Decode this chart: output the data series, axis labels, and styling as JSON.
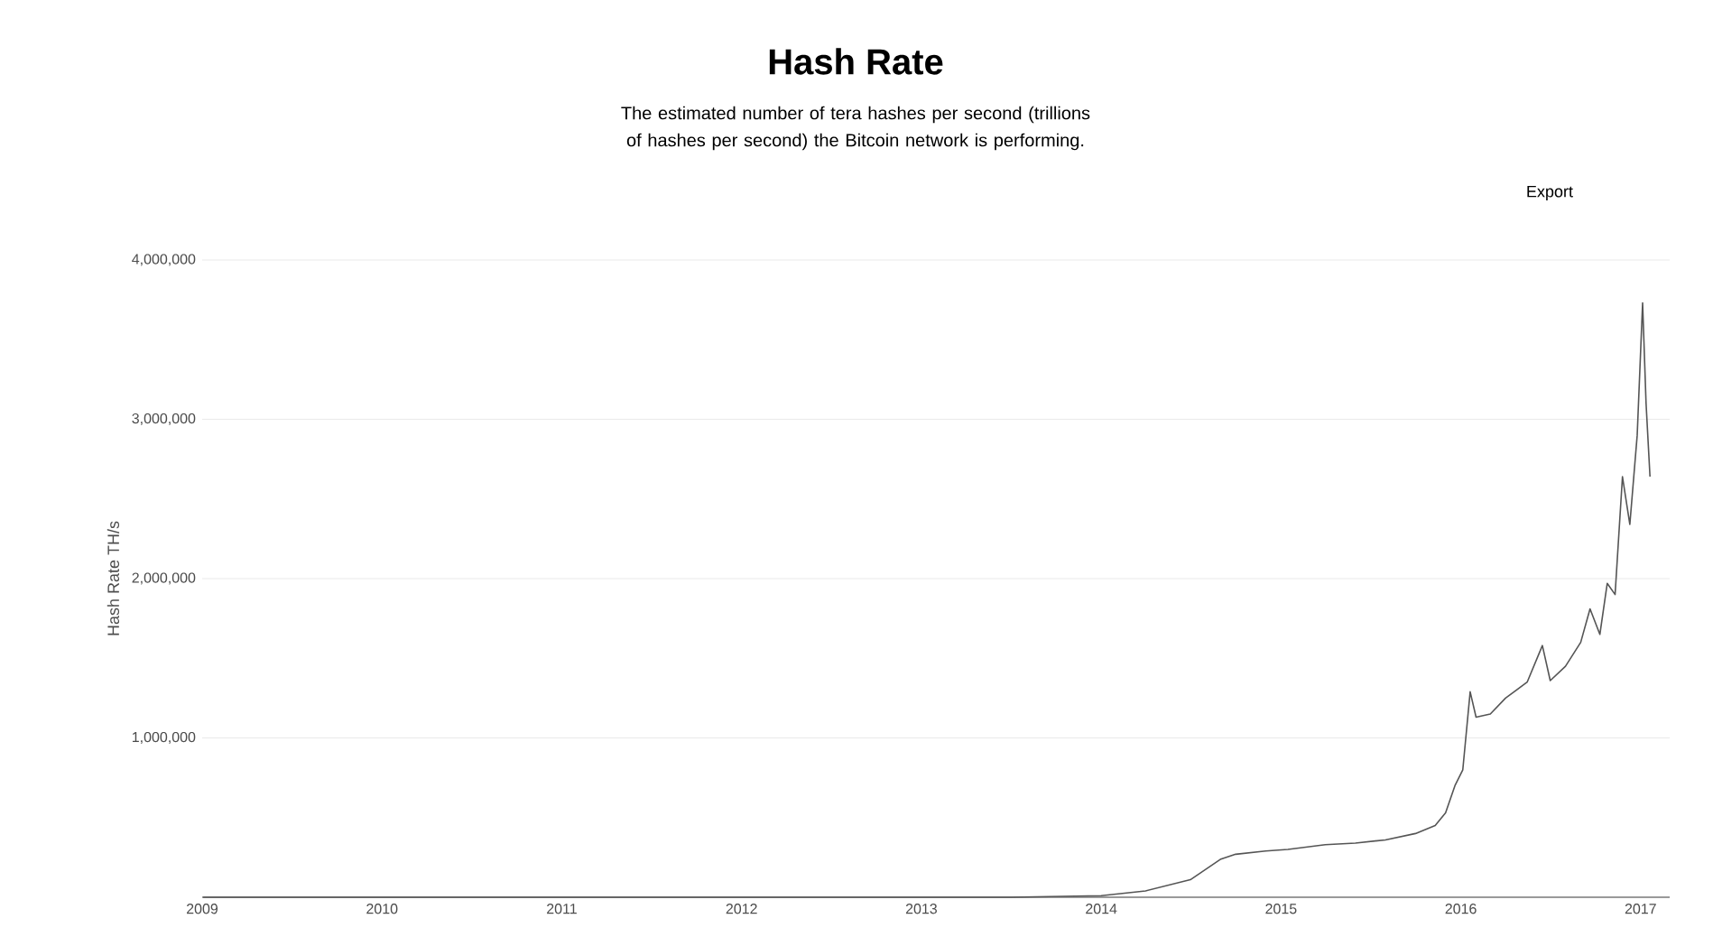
{
  "chart_data": {
    "type": "line",
    "title": "Hash Rate",
    "subtitle": "The estimated number of tera hashes per second (trillions of hashes per second) the Bitcoin network is performing.",
    "ylabel": "Hash Rate TH/s",
    "annotations": [
      "Export"
    ],
    "x": [
      "2009-01-03",
      "2010-01-01",
      "2011-01-01",
      "2012-01-01",
      "2013-01-01",
      "2013-07-01",
      "2014-01-01",
      "2014-04-01",
      "2014-07-01",
      "2014-09-01",
      "2014-10-01",
      "2014-12-01",
      "2015-01-15",
      "2015-04-01",
      "2015-06-01",
      "2015-08-01",
      "2015-10-01",
      "2015-11-10",
      "2015-12-01",
      "2015-12-20",
      "2016-01-05",
      "2016-01-20",
      "2016-02-01",
      "2016-03-01",
      "2016-04-01",
      "2016-05-15",
      "2016-06-15",
      "2016-07-01",
      "2016-08-01",
      "2016-09-01",
      "2016-09-20",
      "2016-10-10",
      "2016-10-25",
      "2016-11-10",
      "2016-11-25",
      "2016-12-10",
      "2016-12-25",
      "2017-01-05",
      "2017-01-12",
      "2017-01-20"
    ],
    "series": [
      {
        "color": "#555555",
        "values": [
          0,
          0,
          0,
          0,
          0,
          0,
          10000,
          40000,
          110000,
          240000,
          270000,
          290000,
          300000,
          330000,
          340000,
          360000,
          400000,
          450000,
          530000,
          700000,
          800000,
          1290000,
          1130000,
          1150000,
          1250000,
          1350000,
          1580000,
          1360000,
          1450000,
          1600000,
          1810000,
          1650000,
          1970000,
          1900000,
          2640000,
          2340000,
          2900000,
          3730000,
          3100000,
          2640000
        ]
      }
    ],
    "xlim": [
      "2009-01-01",
      "2017-03-01"
    ],
    "xticks": [
      "2009",
      "2010",
      "2011",
      "2012",
      "2013",
      "2014",
      "2015",
      "2016",
      "2017"
    ],
    "ylim": [
      0,
      4000000
    ],
    "yticks": [
      {
        "value": 1000000,
        "label": "1,000,000"
      },
      {
        "value": 2000000,
        "label": "2,000,000"
      },
      {
        "value": 3000000,
        "label": "3,000,000"
      },
      {
        "value": 4000000,
        "label": "4,000,000"
      }
    ],
    "grid": "y"
  }
}
